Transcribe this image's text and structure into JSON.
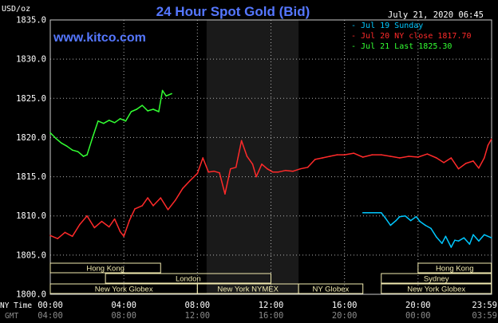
{
  "header": {
    "unit": "USD/oz",
    "title": "24 Hour Spot Gold (Bid)",
    "datetime": "July 21, 2020 06:45",
    "brand": "www.kitco.com",
    "legend": [
      {
        "text": "- Jul 19 Sunday",
        "color": "#00c8ff"
      },
      {
        "text": "- Jul 20 NY close 1817.70",
        "color": "#ff2a2a"
      },
      {
        "text": "- Jul 21 Last 1825.30",
        "color": "#33ff33"
      }
    ]
  },
  "axis_titles": {
    "ny": "NY Time",
    "gmt": "GMT"
  },
  "colors": {
    "background": "#000000",
    "grid": "#b0b0b0",
    "text": "#ffffff",
    "title": "#5577ff",
    "brand": "#5577ff",
    "band": "#1a1a1a",
    "market_box": "#f2ebb0"
  },
  "markets": [
    {
      "label": "Hong Kong",
      "row": 0,
      "from": "00:00",
      "to": "06:00"
    },
    {
      "label": "London",
      "row": 1,
      "from": "03:00",
      "to": "12:00"
    },
    {
      "label": "New York Globex",
      "row": 2,
      "from": "00:00",
      "to": "08:00"
    },
    {
      "label": "New York NYMEX",
      "row": 2,
      "from": "08:00",
      "to": "13:30"
    },
    {
      "label": "NY Globex",
      "row": 2,
      "from": "13:30",
      "to": "17:00"
    },
    {
      "label": "Hong Kong",
      "row": 0,
      "from": "20:00",
      "to": "23:59"
    },
    {
      "label": "Sydney",
      "row": 1,
      "from": "18:00",
      "to": "23:59"
    },
    {
      "label": "New York Globex",
      "row": 2,
      "from": "18:00",
      "to": "23:59"
    }
  ],
  "chart_data": {
    "type": "line",
    "title": "24 Hour Spot Gold (Bid)",
    "ylabel": "USD/oz",
    "xlim": [
      0,
      24
    ],
    "ylim": [
      1800,
      1835
    ],
    "yticks": [
      "1835.0",
      "1830.0",
      "1825.0",
      "1820.0",
      "1815.0",
      "1810.0",
      "1805.0",
      "1800.0"
    ],
    "xticks_ny": [
      "00:00",
      "04:00",
      "08:00",
      "12:00",
      "16:00",
      "20:00",
      "23:59"
    ],
    "xticks_gmt": [
      "04:00",
      "08:00",
      "12:00",
      "16:00",
      "20:00",
      "00:00",
      "03:59"
    ],
    "grid": true,
    "shaded_band": [
      "08:30",
      "13:30"
    ],
    "series": [
      {
        "name": "Jul 19 Sunday",
        "color": "#00c8ff",
        "x": [
          17.0,
          18.0,
          18.2,
          18.5,
          18.8,
          19.0,
          19.3,
          19.6,
          19.9,
          20.1,
          20.4,
          20.7,
          21.0,
          21.3,
          21.5,
          21.8,
          22.0,
          22.2,
          22.5,
          22.8,
          23.0,
          23.3,
          23.6,
          23.99
        ],
        "y": [
          1810.4,
          1810.4,
          1809.8,
          1808.8,
          1809.4,
          1809.9,
          1810.0,
          1809.4,
          1809.9,
          1809.3,
          1808.8,
          1808.4,
          1807.3,
          1806.5,
          1807.4,
          1806.0,
          1806.9,
          1806.8,
          1807.2,
          1806.4,
          1807.6,
          1806.8,
          1807.6,
          1807.2
        ]
      },
      {
        "name": "Jul 20 NY close 1817.70",
        "color": "#ff2a2a",
        "x": [
          0.0,
          0.4,
          0.8,
          1.2,
          1.6,
          2.0,
          2.4,
          2.8,
          3.2,
          3.5,
          3.8,
          4.0,
          4.3,
          4.6,
          5.0,
          5.3,
          5.6,
          6.0,
          6.4,
          6.8,
          7.2,
          7.6,
          8.0,
          8.3,
          8.6,
          8.9,
          9.2,
          9.5,
          9.8,
          10.1,
          10.4,
          10.7,
          11.0,
          11.2,
          11.5,
          11.8,
          12.1,
          12.4,
          12.8,
          13.2,
          13.6,
          14.0,
          14.4,
          14.8,
          15.2,
          15.6,
          16.0,
          16.5,
          17.0,
          17.5,
          18.0,
          18.5,
          19.0,
          19.5,
          20.0,
          20.5,
          21.0,
          21.4,
          21.8,
          22.2,
          22.6,
          23.0,
          23.3,
          23.6,
          23.8,
          23.99
        ],
        "y": [
          1807.5,
          1807.1,
          1807.9,
          1807.4,
          1808.9,
          1810.0,
          1808.5,
          1809.3,
          1808.6,
          1809.6,
          1808.0,
          1807.4,
          1809.4,
          1810.9,
          1811.3,
          1812.3,
          1811.3,
          1812.3,
          1810.8,
          1812.0,
          1813.5,
          1814.5,
          1815.4,
          1817.4,
          1815.6,
          1815.7,
          1815.5,
          1812.8,
          1816.0,
          1816.2,
          1819.6,
          1817.6,
          1816.6,
          1815.0,
          1816.6,
          1816.0,
          1815.6,
          1815.6,
          1815.8,
          1815.7,
          1816.0,
          1816.2,
          1817.2,
          1817.4,
          1817.6,
          1817.8,
          1817.8,
          1818.0,
          1817.5,
          1817.8,
          1817.8,
          1817.6,
          1817.4,
          1817.6,
          1817.5,
          1817.9,
          1817.4,
          1816.8,
          1817.4,
          1816.0,
          1816.7,
          1817.0,
          1816.1,
          1817.4,
          1819.0,
          1819.8
        ]
      },
      {
        "name": "Jul 21 Last 1825.30",
        "color": "#33ff33",
        "x": [
          0.0,
          0.3,
          0.6,
          0.9,
          1.2,
          1.5,
          1.8,
          2.0,
          2.3,
          2.6,
          2.9,
          3.2,
          3.5,
          3.8,
          4.1,
          4.4,
          4.7,
          5.0,
          5.3,
          5.6,
          5.9,
          6.1,
          6.3,
          6.6
        ],
        "y": [
          1820.6,
          1819.9,
          1819.3,
          1818.9,
          1818.4,
          1818.2,
          1817.6,
          1817.8,
          1820.0,
          1822.1,
          1821.8,
          1822.2,
          1821.9,
          1822.4,
          1822.1,
          1823.3,
          1823.6,
          1824.1,
          1823.4,
          1823.6,
          1823.3,
          1826.0,
          1825.3,
          1825.6
        ]
      }
    ]
  }
}
